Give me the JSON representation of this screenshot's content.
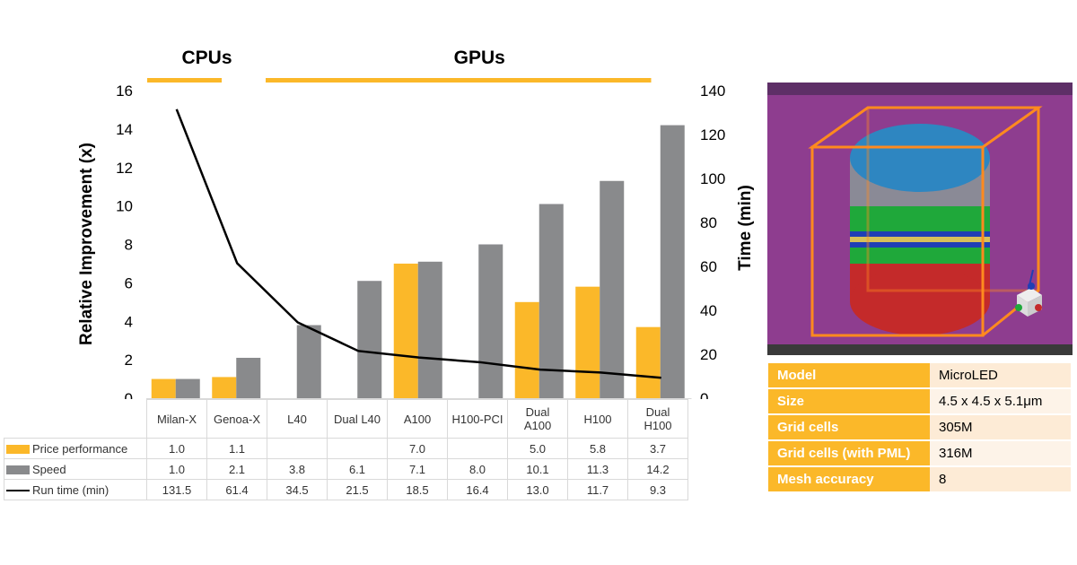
{
  "chart_data": {
    "type": "bar",
    "group_labels": [
      {
        "label": "CPUs",
        "categories": [
          "Milan-X",
          "Genoa-X"
        ]
      },
      {
        "label": "GPUs",
        "categories": [
          "L40",
          "Dual L40",
          "A100",
          "H100-PCI",
          "Dual A100",
          "H100",
          "Dual H100"
        ]
      }
    ],
    "categories": [
      "Milan-X",
      "Genoa-X",
      "L40",
      "Dual L40",
      "A100",
      "H100-PCI",
      "Dual A100",
      "H100",
      "Dual H100"
    ],
    "category_lines": [
      [
        "Milan-X"
      ],
      [
        "Genoa-X"
      ],
      [
        "L40"
      ],
      [
        "Dual L40"
      ],
      [
        "A100"
      ],
      [
        "H100-PCI"
      ],
      [
        "Dual",
        "A100"
      ],
      [
        "H100"
      ],
      [
        "Dual",
        "H100"
      ]
    ],
    "series": [
      {
        "name": "Price performance",
        "type": "bar",
        "axis": "left",
        "color": "#fbb829",
        "values": [
          1.0,
          1.1,
          null,
          null,
          7.0,
          null,
          5.0,
          5.8,
          3.7
        ]
      },
      {
        "name": "Speed",
        "type": "bar",
        "axis": "left",
        "color": "#898a8c",
        "values": [
          1.0,
          2.1,
          3.8,
          6.1,
          7.1,
          8.0,
          10.1,
          11.3,
          14.2
        ]
      },
      {
        "name": "Run time (min)",
        "type": "line",
        "axis": "right",
        "color": "#000000",
        "values": [
          131.5,
          61.4,
          34.5,
          21.5,
          18.5,
          16.4,
          13.0,
          11.7,
          9.3
        ]
      }
    ],
    "ylabel": "Relative Improvement (x)",
    "y2label": "Time (min)",
    "ylim": [
      0,
      16
    ],
    "yticks": [
      0,
      2,
      4,
      6,
      8,
      10,
      12,
      14,
      16
    ],
    "y2lim": [
      0,
      140
    ],
    "y2ticks": [
      0,
      20,
      40,
      60,
      80,
      100,
      120,
      140
    ],
    "grid": false,
    "data_table": true
  },
  "render": {
    "colors": {
      "background": "#8e3d8f",
      "floor": "#5e2f67",
      "box_edge": "#ff8a1e",
      "top_disc": "#2e86c1",
      "layer_gray": "#8a8a96",
      "layer_green": "#1fa83a",
      "layer_red": "#c42a2a",
      "layer_blue": "#1f3fb5",
      "layer_yellow": "#d6c15a"
    },
    "icon": "axis-gizmo-icon"
  },
  "specs": {
    "rows": [
      {
        "key": "Model",
        "value": "MicroLED"
      },
      {
        "key": "Size",
        "value": "4.5 x 4.5 x 5.1μm"
      },
      {
        "key": "Grid cells",
        "value": "305M"
      },
      {
        "key": "Grid cells (with PML)",
        "value": "316M"
      },
      {
        "key": "Mesh accuracy",
        "value": "8"
      }
    ],
    "key_color": "#fbb829",
    "value_colors": [
      "#fdebd6",
      "#fdf3e8"
    ]
  }
}
